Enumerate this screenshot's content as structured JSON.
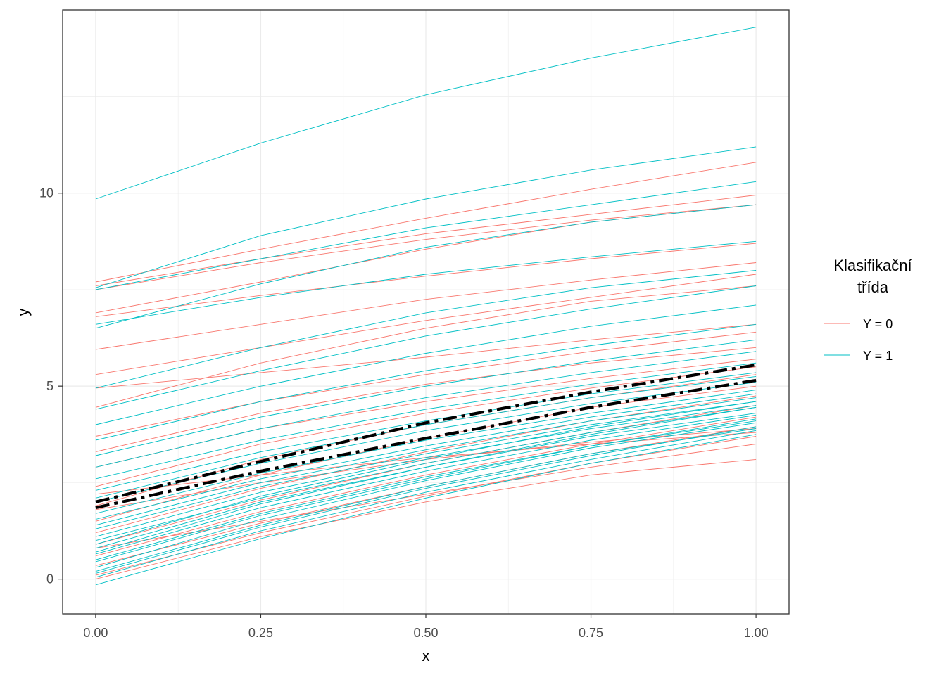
{
  "chart_data": {
    "type": "line",
    "title": "",
    "xlabel": "x",
    "ylabel": "y",
    "xlim": [
      -0.05,
      1.05
    ],
    "ylim": [
      -0.9,
      14.75
    ],
    "x_ticks": [
      "0.00",
      "0.25",
      "0.50",
      "0.75",
      "1.00"
    ],
    "x_tick_values": [
      0,
      0.25,
      0.5,
      0.75,
      1.0
    ],
    "y_ticks": [
      "0",
      "5",
      "10"
    ],
    "y_tick_values": [
      0,
      5,
      10
    ],
    "grid": true,
    "legend": {
      "title_lines": [
        "Klasifikační",
        "třída"
      ],
      "placement": "right",
      "entries": [
        {
          "label": "Y = 0",
          "color": "#F8766D"
        },
        {
          "label": "Y = 1",
          "color": "#00BFC4"
        }
      ]
    },
    "x": [
      0,
      0.25,
      0.5,
      0.75,
      1.0
    ],
    "series_class0": [
      [
        7.7,
        8.55,
        9.35,
        10.1,
        10.8
      ],
      [
        7.6,
        8.3,
        8.95,
        9.45,
        9.95
      ],
      [
        6.9,
        7.7,
        8.55,
        9.25,
        9.7
      ],
      [
        6.8,
        7.35,
        7.85,
        8.3,
        8.7
      ],
      [
        5.95,
        6.6,
        7.25,
        7.75,
        8.2
      ],
      [
        5.3,
        6.0,
        6.7,
        7.3,
        7.9
      ],
      [
        4.45,
        5.6,
        6.5,
        7.2,
        7.6
      ],
      [
        4.95,
        5.35,
        5.75,
        6.2,
        6.6
      ],
      [
        3.3,
        4.3,
        5.05,
        5.6,
        6.0
      ],
      [
        2.9,
        3.9,
        4.6,
        5.2,
        5.7
      ],
      [
        2.4,
        3.5,
        4.3,
        4.95,
        5.5
      ],
      [
        1.9,
        3.1,
        4.0,
        4.7,
        5.3
      ],
      [
        1.5,
        2.7,
        3.65,
        4.45,
        5.0
      ],
      [
        1.2,
        2.35,
        3.3,
        4.1,
        4.75
      ],
      [
        0.9,
        2.05,
        3.0,
        3.8,
        4.5
      ],
      [
        0.6,
        1.75,
        2.7,
        3.5,
        4.2
      ],
      [
        0.35,
        1.45,
        2.4,
        3.25,
        3.95
      ],
      [
        0.1,
        1.2,
        2.15,
        3.0,
        3.7
      ],
      [
        0.0,
        1.1,
        2.0,
        2.7,
        3.1
      ],
      [
        1.8,
        2.5,
        3.1,
        3.55,
        3.9
      ],
      [
        2.2,
        2.7,
        3.15,
        3.5,
        3.8
      ],
      [
        0.8,
        1.5,
        2.2,
        2.9,
        3.5
      ],
      [
        3.7,
        4.6,
        5.3,
        5.9,
        6.4
      ],
      [
        7.5,
        8.2,
        8.8,
        9.3,
        9.7
      ]
    ],
    "series_class1": [
      [
        9.85,
        11.3,
        12.55,
        13.5,
        14.3
      ],
      [
        7.55,
        8.9,
        9.85,
        10.6,
        11.2
      ],
      [
        7.5,
        8.3,
        9.1,
        9.7,
        10.3
      ],
      [
        6.5,
        7.65,
        8.6,
        9.25,
        9.7
      ],
      [
        6.6,
        7.3,
        7.9,
        8.35,
        8.75
      ],
      [
        4.95,
        6.0,
        6.9,
        7.55,
        8.0
      ],
      [
        4.4,
        5.4,
        6.3,
        7.0,
        7.6
      ],
      [
        4.0,
        5.0,
        5.85,
        6.55,
        7.1
      ],
      [
        3.6,
        4.6,
        5.4,
        6.05,
        6.6
      ],
      [
        3.2,
        4.2,
        5.0,
        5.65,
        6.2
      ],
      [
        2.9,
        3.9,
        4.7,
        5.35,
        5.9
      ],
      [
        2.6,
        3.6,
        4.4,
        5.05,
        5.6
      ],
      [
        2.3,
        3.3,
        4.1,
        4.8,
        5.35
      ],
      [
        2.0,
        3.0,
        3.85,
        4.55,
        5.1
      ],
      [
        1.7,
        2.75,
        3.6,
        4.3,
        4.9
      ],
      [
        1.4,
        2.5,
        3.35,
        4.1,
        4.7
      ],
      [
        1.1,
        2.25,
        3.15,
        3.9,
        4.5
      ],
      [
        0.8,
        2.0,
        2.9,
        3.7,
        4.3
      ],
      [
        0.5,
        1.7,
        2.65,
        3.45,
        4.1
      ],
      [
        0.2,
        1.4,
        2.4,
        3.25,
        3.9
      ],
      [
        -0.15,
        1.05,
        2.1,
        3.0,
        3.75
      ],
      [
        0.3,
        1.55,
        2.55,
        3.4,
        4.05
      ],
      [
        0.65,
        1.85,
        2.8,
        3.6,
        4.25
      ],
      [
        1.0,
        2.1,
        3.0,
        3.8,
        4.45
      ],
      [
        1.3,
        2.4,
        3.25,
        4.0,
        4.6
      ],
      [
        0.05,
        1.25,
        2.25,
        3.1,
        3.85
      ],
      [
        0.45,
        1.65,
        2.6,
        3.45,
        4.15
      ],
      [
        1.55,
        2.6,
        3.45,
        4.2,
        4.8
      ],
      [
        0.9,
        2.15,
        3.1,
        3.95,
        4.6
      ],
      [
        2.1,
        3.15,
        4.0,
        4.7,
        5.25
      ],
      [
        0.15,
        1.35,
        2.35,
        3.2,
        3.95
      ],
      [
        0.7,
        1.95,
        2.9,
        3.75,
        4.45
      ]
    ],
    "mean_class0": [
      2.0,
      3.05,
      4.05,
      4.85,
      5.55
    ],
    "mean_class1": [
      1.85,
      2.8,
      3.65,
      4.45,
      5.15
    ]
  }
}
